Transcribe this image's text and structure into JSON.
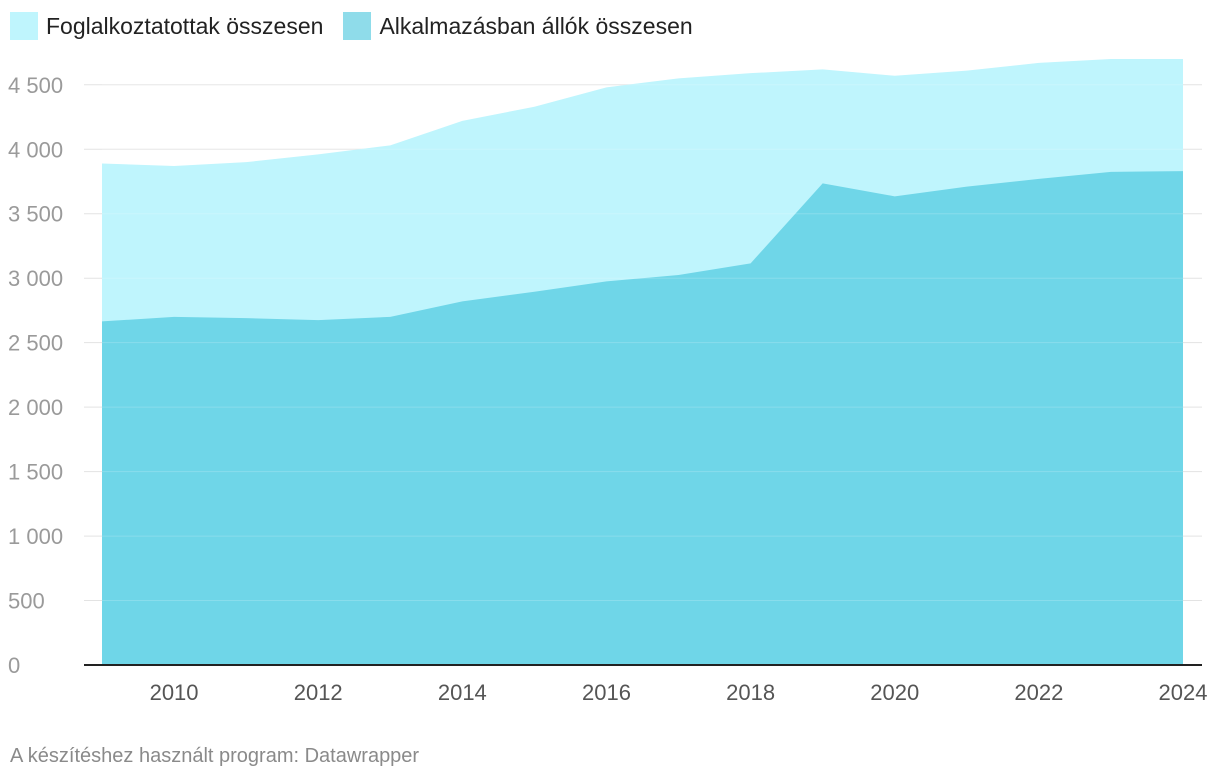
{
  "legend": [
    {
      "label": "Foglalkoztatottak összesen",
      "color": "#bff5fd"
    },
    {
      "label": "Alkalmazásban állók összesen",
      "color": "#8fdcea"
    }
  ],
  "footer": "A készítéshez használt program: Datawrapper",
  "chart_data": {
    "type": "area",
    "x": [
      2009,
      2010,
      2011,
      2012,
      2013,
      2014,
      2015,
      2016,
      2017,
      2018,
      2019,
      2020,
      2021,
      2022,
      2023,
      2024
    ],
    "series": [
      {
        "name": "Foglalkoztatottak összesen",
        "color": "#bff5fd",
        "values": [
          3890,
          3870,
          3900,
          3960,
          4030,
          4220,
          4330,
          4480,
          4550,
          4590,
          4620,
          4570,
          4610,
          4670,
          4700,
          4700
        ]
      },
      {
        "name": "Alkalmazásban állók összesen",
        "color": "#6fd6e8",
        "values": [
          2665,
          2700,
          2690,
          2675,
          2700,
          2820,
          2895,
          2975,
          3025,
          3115,
          3735,
          3635,
          3710,
          3770,
          3825,
          3830
        ]
      }
    ],
    "xticks": [
      "2010",
      "2012",
      "2014",
      "2016",
      "2018",
      "2020",
      "2022",
      "2024"
    ],
    "yticks": [
      0,
      500,
      1000,
      1500,
      2000,
      2500,
      3000,
      3500,
      4000,
      4500
    ],
    "ytick_labels": [
      "0",
      "500",
      "1 000",
      "1 500",
      "2 000",
      "2 500",
      "3 000",
      "3 500",
      "4 000",
      "4 500"
    ],
    "xlim": [
      2009,
      2024
    ],
    "ylim": [
      0,
      4700
    ],
    "grid": true,
    "legend_position": "top-left",
    "title": "",
    "xlabel": "",
    "ylabel": ""
  }
}
